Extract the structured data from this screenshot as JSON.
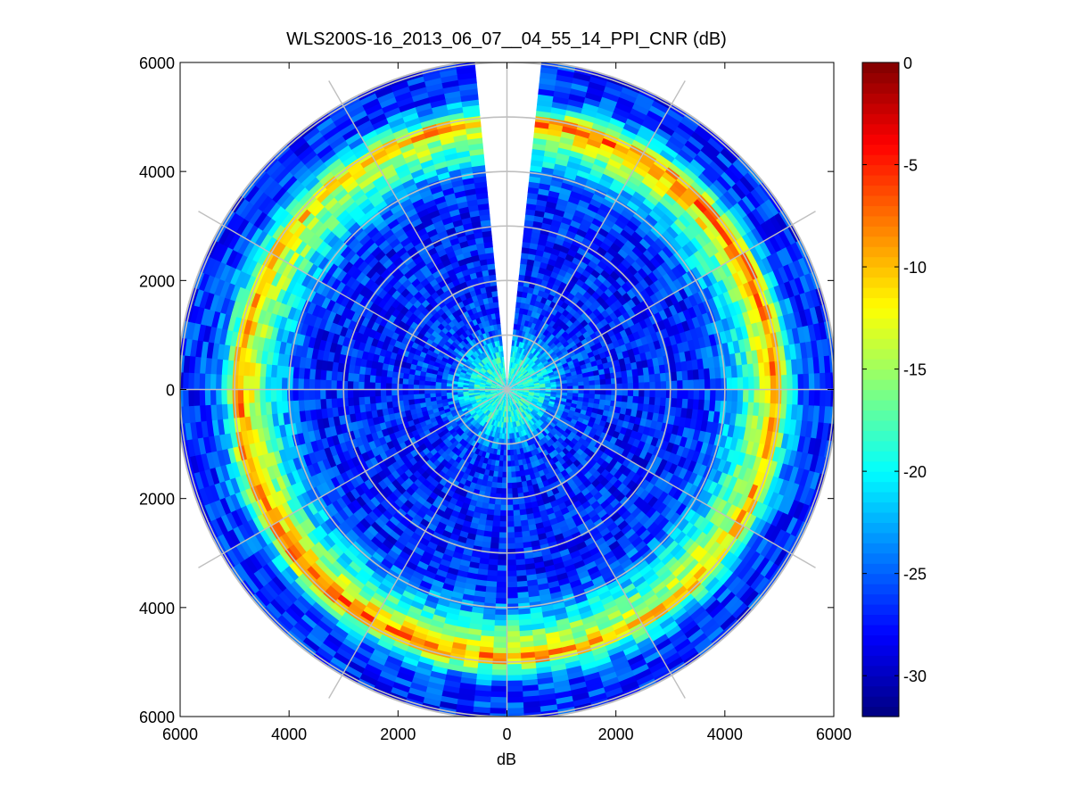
{
  "chart_data": {
    "type": "heatmap",
    "subtype": "polar-ppi",
    "title": "WLS200S-16_2013_06_07__04_55_14_PPI_CNR (dB)",
    "xlabel": "dB",
    "ylabel": "",
    "xlim": [
      -6000,
      6000
    ],
    "ylim": [
      -6000,
      6000
    ],
    "x_ticks": [
      -6000,
      -4000,
      -2000,
      0,
      2000,
      4000,
      6000
    ],
    "x_tick_labels": [
      "6000",
      "4000",
      "2000",
      "0",
      "2000",
      "4000",
      "6000"
    ],
    "y_ticks": [
      6000,
      4000,
      2000,
      0,
      -2000,
      -4000,
      -6000
    ],
    "y_tick_labels": [
      "6000",
      "4000",
      "2000",
      "0",
      "2000",
      "4000",
      "6000"
    ],
    "polar_grid": {
      "range_rings": [
        1000,
        2000,
        3000,
        4000,
        5000,
        6000
      ],
      "spokes_deg": [
        0,
        30,
        60,
        90,
        120,
        150,
        180,
        210,
        240,
        270,
        300,
        330
      ]
    },
    "max_range": 6050,
    "missing_sector_deg": [
      -5,
      5
    ],
    "cnr_profile_db": [
      {
        "range": 0,
        "value": -20
      },
      {
        "range": 300,
        "value": -19
      },
      {
        "range": 600,
        "value": -19.5
      },
      {
        "range": 900,
        "value": -23
      },
      {
        "range": 1200,
        "value": -26
      },
      {
        "range": 2000,
        "value": -27
      },
      {
        "range": 3500,
        "value": -27
      },
      {
        "range": 3900,
        "value": -25
      },
      {
        "range": 4300,
        "value": -20
      },
      {
        "range": 4600,
        "value": -15
      },
      {
        "range": 4800,
        "value": -12
      },
      {
        "range": 4950,
        "value": -7
      },
      {
        "range": 5050,
        "value": -15
      },
      {
        "range": 5250,
        "value": -22
      },
      {
        "range": 5500,
        "value": -26
      },
      {
        "range": 6050,
        "value": -27
      }
    ],
    "colorbar": {
      "limits": [
        -32,
        0
      ],
      "ticks": [
        0,
        -5,
        -10,
        -15,
        -20,
        -25,
        -30
      ],
      "tick_labels": [
        "0",
        "-5",
        "-10",
        "-15",
        "-20",
        "-25",
        "-30"
      ],
      "colormap": "jet"
    }
  }
}
